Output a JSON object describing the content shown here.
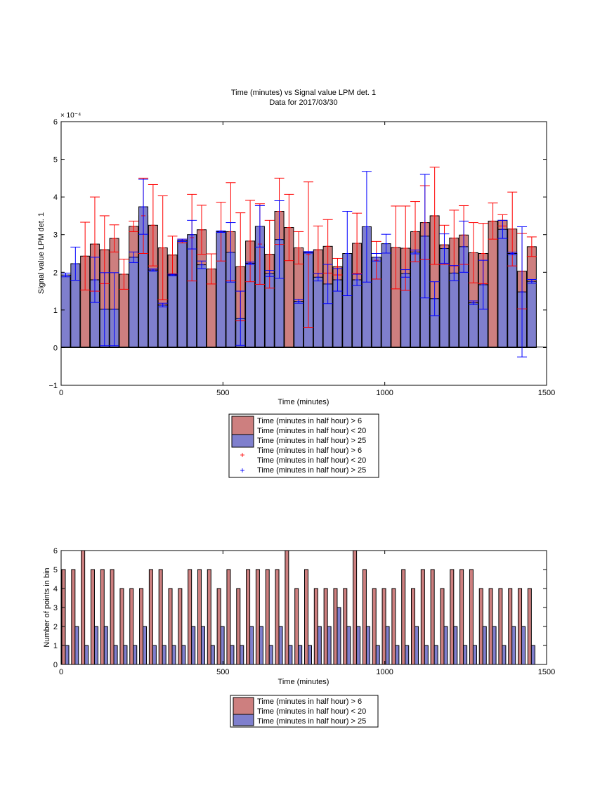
{
  "chart_data": [
    {
      "type": "bar",
      "title": "Time (minutes) vs Signal value LPM det. 1",
      "subtitle": "Data for 2017/03/30",
      "xlabel": "Time (minutes)",
      "ylabel": "Signal value LPM det. 1",
      "exponent": "× 10⁻⁴",
      "xlim": [
        0,
        1500
      ],
      "ylim": [
        -1,
        6
      ],
      "xticks": [
        "0",
        "500",
        "1000",
        "1500"
      ],
      "yticks": [
        "−1",
        "0",
        "1",
        "2",
        "3",
        "4",
        "5",
        "6"
      ],
      "grid": false,
      "legend_position": "below",
      "legend": [
        "Time (minutes in half hour) > 6",
        "Time (minutes in half hour) < 20",
        "Time (minutes in half hour) > 25",
        "Time (minutes in half hour) > 6",
        "Time (minutes in half hour) < 20",
        "Time (minutes in half hour) > 25"
      ],
      "x": [
        0,
        30,
        60,
        90,
        120,
        150,
        180,
        210,
        240,
        270,
        300,
        330,
        360,
        390,
        420,
        450,
        480,
        510,
        540,
        570,
        600,
        630,
        660,
        690,
        720,
        750,
        780,
        810,
        840,
        870,
        900,
        930,
        960,
        990,
        1020,
        1050,
        1080,
        1110,
        1140,
        1170,
        1200,
        1230,
        1260,
        1290,
        1320,
        1350,
        1380,
        1410,
        1440
      ],
      "series": [
        {
          "color": "#cd7f7f",
          "values": [
            null,
            null,
            2.43,
            2.75,
            2.6,
            2.9,
            1.95,
            3.22,
            3.5,
            3.25,
            2.65,
            2.46,
            2.83,
            2.92,
            3.13,
            2.09,
            3.08,
            3.08,
            2.15,
            2.83,
            2.75,
            2.48,
            3.62,
            3.19,
            2.65,
            2.47,
            2.6,
            2.69,
            2.15,
            null,
            2.77,
            null,
            2.32,
            null,
            2.66,
            2.64,
            3.08,
            3.32,
            3.5,
            2.73,
            2.91,
            2.99,
            2.52,
            2.5,
            3.36,
            3.38,
            3.15,
            2.03,
            2.68
          ],
          "err": [
            null,
            null,
            0.9,
            1.25,
            0.9,
            0.36,
            0.4,
            0.14,
            1.0,
            1.08,
            1.38,
            0.5,
            0.05,
            1.15,
            0.65,
            0.4,
            0.78,
            1.3,
            1.43,
            1.08,
            1.07,
            0.9,
            0.88,
            0.88,
            0.43,
            1.93,
            0.63,
            0.71,
            0.22,
            null,
            0.8,
            null,
            0.5,
            null,
            1.1,
            1.12,
            0.8,
            0.98,
            1.29,
            0.52,
            0.74,
            0.78,
            0.8,
            0.8,
            0.48,
            0.15,
            0.98,
            1.0,
            0.26
          ]
        },
        {
          "color": "#7f7fcd",
          "values": [
            1.93,
            2.23,
            null,
            1.8,
            1.02,
            1.02,
            null,
            2.4,
            3.74,
            2.06,
            1.13,
            1.93,
            2.85,
            3.0,
            2.2,
            null,
            3.08,
            2.53,
            0.78,
            2.24,
            3.22,
            1.97,
            2.87,
            null,
            1.23,
            2.53,
            1.87,
            1.69,
            1.8,
            2.5,
            1.8,
            3.21,
            2.4,
            2.76,
            null,
            1.97,
            2.54,
            2.96,
            1.3,
            2.63,
            1.98,
            2.68,
            1.19,
            1.67,
            null,
            3.14,
            2.5,
            1.48,
            1.76
          ]
        }
      ],
      "series_err": [
        {
          "values": [
            null,
            null,
            null,
            null,
            null,
            null,
            null,
            null,
            null,
            null,
            null,
            null,
            null,
            null,
            null,
            null,
            null,
            null,
            null,
            null,
            null,
            null,
            null,
            null,
            null,
            null,
            null,
            null,
            null,
            null,
            null,
            null,
            null,
            null,
            null,
            null,
            null,
            null,
            null,
            null,
            null,
            null,
            null,
            null,
            null,
            null,
            null,
            null,
            null
          ]
        },
        {
          "values": [
            0.05,
            0.44,
            null,
            0.6,
            0.97,
            0.97,
            null,
            0.14,
            0.73,
            0.03,
            0.05,
            0.02,
            0.03,
            0.38,
            0.1,
            null,
            0.02,
            0.79,
            0.72,
            0.03,
            0.55,
            0.08,
            1.03,
            null,
            0.05,
            0.02,
            0.1,
            0.52,
            0.3,
            1.12,
            0.15,
            1.47,
            0.1,
            0.25,
            null,
            0.1,
            0.05,
            1.64,
            0.45,
            0.39,
            0.2,
            0.68,
            0.05,
            0.65,
            null,
            0.24,
            0.03,
            1.73,
            0.05
          ]
        }
      ]
    },
    {
      "type": "bar",
      "xlabel": "Time (minutes)",
      "ylabel": "Number of points in bin",
      "xlim": [
        0,
        1500
      ],
      "ylim": [
        0,
        6
      ],
      "xticks": [
        "0",
        "500",
        "1000",
        "1500"
      ],
      "yticks": [
        "0",
        "1",
        "2",
        "3",
        "4",
        "5",
        "6"
      ],
      "grid": false,
      "legend_position": "below",
      "legend": [
        "Time (minutes in half hour) > 6",
        "Time (minutes in half hour) < 20",
        "Time (minutes in half hour) > 25"
      ],
      "x": [
        0,
        30,
        60,
        90,
        120,
        150,
        180,
        210,
        240,
        270,
        300,
        330,
        360,
        390,
        420,
        450,
        480,
        510,
        540,
        570,
        600,
        630,
        660,
        690,
        720,
        750,
        780,
        810,
        840,
        870,
        900,
        930,
        960,
        990,
        1020,
        1050,
        1080,
        1110,
        1140,
        1170,
        1200,
        1230,
        1260,
        1290,
        1320,
        1350,
        1380,
        1410,
        1440
      ],
      "series": [
        {
          "color": "#cd7f7f",
          "values": [
            5,
            5,
            6,
            5,
            5,
            5,
            4,
            4,
            4,
            5,
            5,
            4,
            4,
            5,
            5,
            5,
            4,
            5,
            4,
            5,
            5,
            5,
            5,
            6,
            4,
            5,
            4,
            4,
            4,
            4,
            6,
            5,
            4,
            4,
            4,
            5,
            4,
            5,
            5,
            4,
            5,
            5,
            5,
            4,
            4,
            4,
            4,
            4,
            4
          ]
        },
        {
          "color": "#7f7fcd",
          "values": [
            1,
            2,
            1,
            2,
            2,
            1,
            1,
            1,
            2,
            1,
            1,
            1,
            1,
            2,
            2,
            1,
            2,
            1,
            1,
            2,
            2,
            1,
            2,
            1,
            1,
            1,
            2,
            2,
            3,
            2,
            2,
            2,
            1,
            2,
            1,
            1,
            2,
            1,
            1,
            2,
            2,
            1,
            1,
            2,
            2,
            1,
            2,
            2,
            1
          ]
        }
      ]
    }
  ]
}
